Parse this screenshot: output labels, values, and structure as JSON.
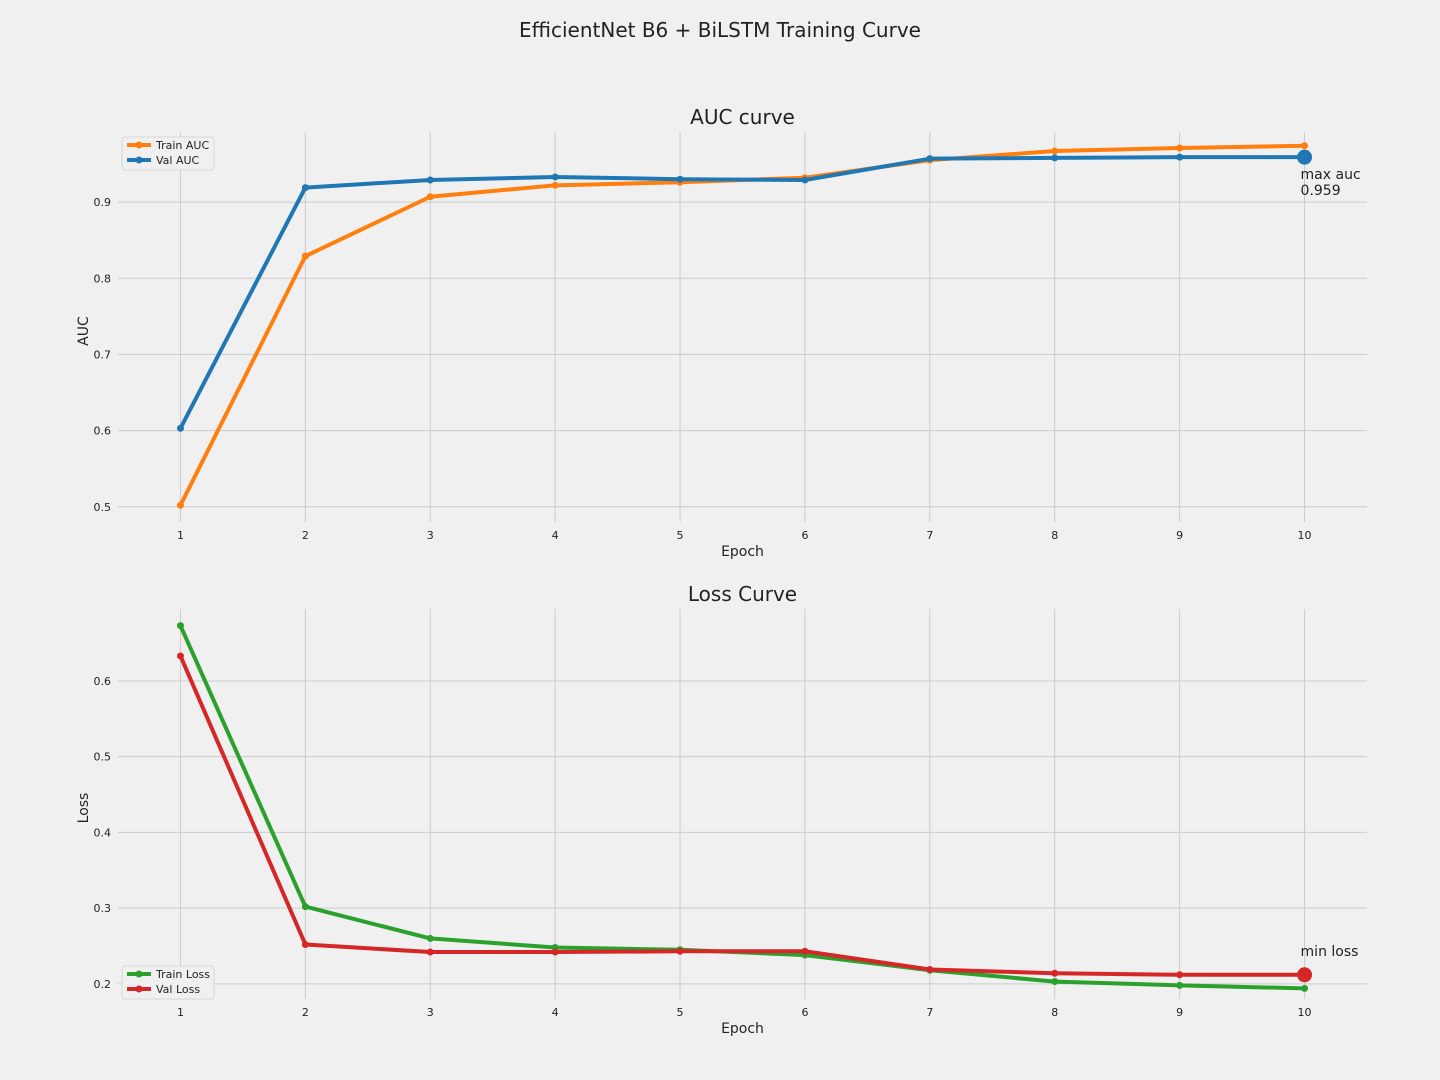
{
  "figure": {
    "title": "EfficientNet B6 + BiLSTM Training Curve"
  },
  "chart_data": [
    {
      "type": "line",
      "title": "AUC curve",
      "xlabel": "Epoch",
      "ylabel": "AUC",
      "x": [
        1,
        2,
        3,
        4,
        5,
        6,
        7,
        8,
        9,
        10
      ],
      "xlim": [
        0.5,
        10.5
      ],
      "ylim": [
        0.48,
        0.992
      ],
      "xticks": [
        1,
        2,
        3,
        4,
        5,
        6,
        7,
        8,
        9,
        10
      ],
      "yticks": [
        0.5,
        0.6,
        0.7,
        0.8,
        0.9
      ],
      "grid": true,
      "legend": "top-left",
      "series": [
        {
          "name": "Train AUC",
          "color": "#ff7f0e",
          "values": [
            0.502,
            0.829,
            0.907,
            0.922,
            0.926,
            0.932,
            0.955,
            0.967,
            0.971,
            0.974
          ]
        },
        {
          "name": "Val AUC",
          "color": "#1f77b4",
          "values": [
            0.603,
            0.919,
            0.929,
            0.933,
            0.93,
            0.929,
            0.957,
            0.958,
            0.959,
            0.959
          ]
        }
      ],
      "highlight": {
        "series": 1,
        "x": 10,
        "y": 0.959,
        "color": "#1f77b4",
        "label_line1": "max auc",
        "label_line2": "0.959"
      }
    },
    {
      "type": "line",
      "title": "Loss Curve",
      "xlabel": "Epoch",
      "ylabel": "Loss",
      "x": [
        1,
        2,
        3,
        4,
        5,
        6,
        7,
        8,
        9,
        10
      ],
      "xlim": [
        0.5,
        10.5
      ],
      "ylim": [
        0.18,
        0.695
      ],
      "xticks": [
        1,
        2,
        3,
        4,
        5,
        6,
        7,
        8,
        9,
        10
      ],
      "yticks": [
        0.2,
        0.3,
        0.4,
        0.5,
        0.6
      ],
      "grid": true,
      "legend": "bottom-left",
      "series": [
        {
          "name": "Train Loss",
          "color": "#2ca02c",
          "values": [
            0.673,
            0.302,
            0.26,
            0.248,
            0.245,
            0.238,
            0.218,
            0.203,
            0.198,
            0.194
          ]
        },
        {
          "name": "Val Loss",
          "color": "#d62728",
          "values": [
            0.633,
            0.252,
            0.242,
            0.242,
            0.243,
            0.243,
            0.219,
            0.214,
            0.212,
            0.212
          ]
        }
      ],
      "highlight": {
        "series": 1,
        "x": 10,
        "y": 0.212,
        "color": "#d62728",
        "label_line1": "min loss",
        "label_line2": ""
      }
    }
  ]
}
